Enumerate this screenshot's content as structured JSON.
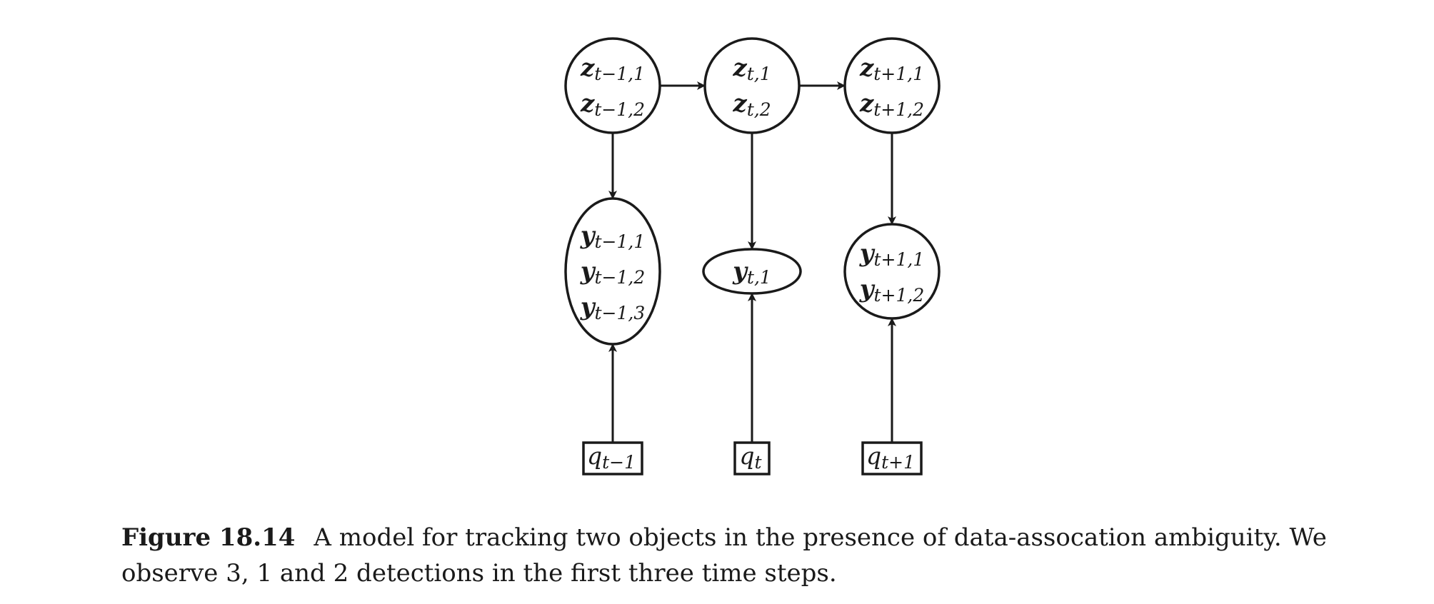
{
  "diagram": {
    "latent_nodes": [
      {
        "id": "z_tm1",
        "lines": [
          {
            "var": "z",
            "sub": "t−1,1"
          },
          {
            "var": "z",
            "sub": "t−1,2"
          }
        ]
      },
      {
        "id": "z_t",
        "lines": [
          {
            "var": "z",
            "sub": "t,1"
          },
          {
            "var": "z",
            "sub": "t,2"
          }
        ]
      },
      {
        "id": "z_tp1",
        "lines": [
          {
            "var": "z",
            "sub": "t+1,1"
          },
          {
            "var": "z",
            "sub": "t+1,2"
          }
        ]
      }
    ],
    "observed_nodes": [
      {
        "id": "y_tm1",
        "lines": [
          {
            "var": "y",
            "sub": "t−1,1"
          },
          {
            "var": "y",
            "sub": "t−1,2"
          },
          {
            "var": "y",
            "sub": "t−1,3"
          }
        ]
      },
      {
        "id": "y_t",
        "lines": [
          {
            "var": "y",
            "sub": "t,1"
          }
        ]
      },
      {
        "id": "y_tp1",
        "lines": [
          {
            "var": "y",
            "sub": "t+1,1"
          },
          {
            "var": "y",
            "sub": "t+1,2"
          }
        ]
      }
    ],
    "count_nodes": [
      {
        "id": "q_tm1",
        "var": "q",
        "sub": "t−1"
      },
      {
        "id": "q_t",
        "var": "q",
        "sub": "t"
      },
      {
        "id": "q_tp1",
        "var": "q",
        "sub": "t+1"
      }
    ],
    "edges": [
      {
        "from": "z_tm1",
        "to": "z_t"
      },
      {
        "from": "z_t",
        "to": "z_tp1"
      },
      {
        "from": "z_tm1",
        "to": "y_tm1"
      },
      {
        "from": "z_t",
        "to": "y_t"
      },
      {
        "from": "z_tp1",
        "to": "y_tp1"
      },
      {
        "from": "q_tm1",
        "to": "y_tm1"
      },
      {
        "from": "q_t",
        "to": "y_t"
      },
      {
        "from": "q_tp1",
        "to": "y_tp1"
      }
    ]
  },
  "caption": {
    "label": "Figure 18.14",
    "text": "A model for tracking two objects in the presence of data-assocation ambiguity. We observe 3, 1 and 2 detections in the first three time steps."
  }
}
